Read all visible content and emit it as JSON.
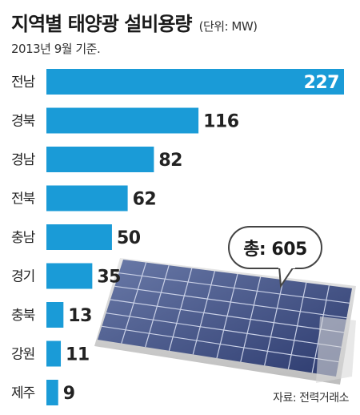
{
  "header": {
    "title": "지역별 태양광 설비용량",
    "unit": "(단위: MW)",
    "subtitle": "2013년 9월 기준."
  },
  "total": {
    "text": "총: 605"
  },
  "source": "자료: 전력거래소",
  "colors": {
    "bar": "#1a9bd7",
    "panel": "#3f4f86",
    "bubble_border": "#444444"
  },
  "chart_data": {
    "type": "bar",
    "orientation": "horizontal",
    "categories": [
      "전남",
      "경북",
      "경남",
      "전북",
      "충남",
      "경기",
      "충북",
      "강원",
      "제주"
    ],
    "values": [
      227,
      116,
      82,
      62,
      50,
      35,
      13,
      11,
      9
    ],
    "title": "지역별 태양광 설비용량",
    "xlabel": "",
    "ylabel": "",
    "xlim": [
      0,
      227
    ],
    "grid": false,
    "legend": "none"
  }
}
